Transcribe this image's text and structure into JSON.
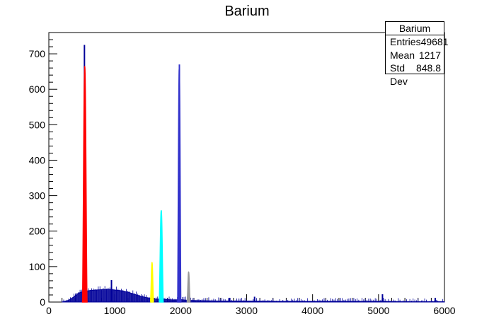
{
  "chart_data": {
    "type": "histogram",
    "title": "Barium",
    "xlim": [
      0,
      6000
    ],
    "ylim": [
      0,
      760
    ],
    "xticks": [
      0,
      1000,
      2000,
      3000,
      4000,
      5000,
      6000
    ],
    "yticks": [
      0,
      100,
      200,
      300,
      400,
      500,
      600,
      700
    ],
    "grid": false,
    "background": {
      "name": "spectrum",
      "color": "#000099",
      "points": [
        [
          200,
          0
        ],
        [
          300,
          5
        ],
        [
          380,
          15
        ],
        [
          450,
          25
        ],
        [
          520,
          30
        ],
        [
          600,
          32
        ],
        [
          700,
          34
        ],
        [
          800,
          35
        ],
        [
          900,
          36
        ],
        [
          1000,
          34
        ],
        [
          1100,
          32
        ],
        [
          1200,
          28
        ],
        [
          1300,
          22
        ],
        [
          1400,
          16
        ],
        [
          1500,
          12
        ],
        [
          1600,
          9
        ],
        [
          1700,
          8
        ],
        [
          1800,
          7
        ],
        [
          1900,
          6
        ],
        [
          2000,
          7
        ],
        [
          2100,
          5
        ],
        [
          2300,
          4
        ],
        [
          2600,
          3
        ],
        [
          3000,
          3
        ],
        [
          3500,
          2
        ],
        [
          4000,
          2
        ],
        [
          4500,
          2
        ],
        [
          5000,
          2
        ],
        [
          5500,
          1
        ],
        [
          6000,
          1
        ]
      ]
    },
    "peaks": [
      {
        "x": 540,
        "y": 725,
        "color": "#000099"
      },
      {
        "x": 1980,
        "y": 670,
        "color": "#3333cc"
      },
      {
        "x": 950,
        "y": 62,
        "color": "#000099"
      },
      {
        "x": 2740,
        "y": 12,
        "color": "#000099"
      },
      {
        "x": 3120,
        "y": 15,
        "color": "#000099"
      },
      {
        "x": 5060,
        "y": 22,
        "color": "#000099"
      },
      {
        "x": 5860,
        "y": 12,
        "color": "#000099"
      }
    ],
    "fits": [
      {
        "name": "red",
        "x": 545,
        "height": 665,
        "width": 8,
        "color": "#ff0000"
      },
      {
        "name": "yellow",
        "x": 1565,
        "height": 112,
        "width": 5,
        "color": "#ffff00"
      },
      {
        "name": "cyan",
        "x": 1705,
        "height": 258,
        "width": 7,
        "color": "#00ffff"
      },
      {
        "name": "blue",
        "x": 1978,
        "height": 660,
        "width": 6,
        "color": "#3333cc"
      },
      {
        "name": "gray",
        "x": 2120,
        "height": 85,
        "width": 5,
        "color": "#999999"
      }
    ]
  },
  "stats": {
    "title": "Barium",
    "entries_label": "Entries",
    "entries_value": "49681",
    "mean_label": "Mean",
    "mean_value": "1217",
    "std_label": "Std Dev",
    "std_value": "848.8"
  }
}
